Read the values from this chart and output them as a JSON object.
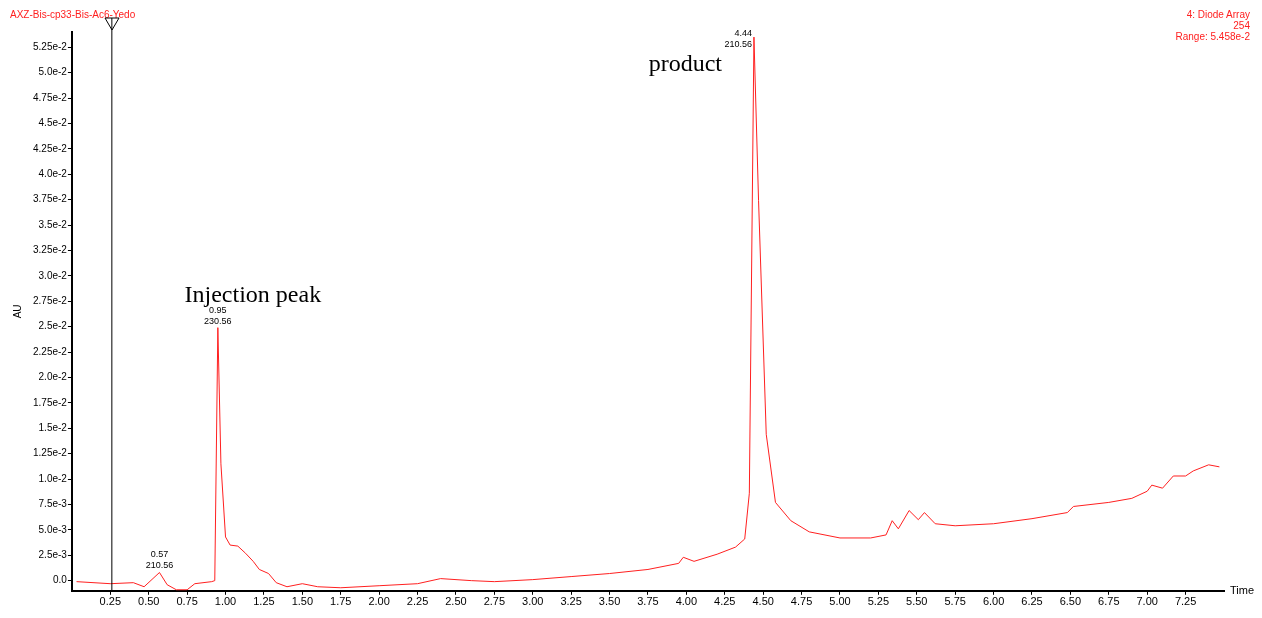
{
  "chart_data": {
    "type": "line",
    "xlabel": "Time",
    "ylabel": "AU",
    "x": [
      0.03,
      0.25,
      0.4,
      0.47,
      0.57,
      0.62,
      0.68,
      0.75,
      0.8,
      0.91,
      0.93,
      0.95,
      0.97,
      1.0,
      1.03,
      1.08,
      1.13,
      1.18,
      1.22,
      1.28,
      1.33,
      1.4,
      1.5,
      1.6,
      1.75,
      2.0,
      2.25,
      2.4,
      2.6,
      2.75,
      3.0,
      3.25,
      3.5,
      3.75,
      3.95,
      3.98,
      4.05,
      4.2,
      4.32,
      4.38,
      4.41,
      4.44,
      4.47,
      4.52,
      4.58,
      4.68,
      4.8,
      5.0,
      5.2,
      5.3,
      5.34,
      5.38,
      5.45,
      5.51,
      5.55,
      5.62,
      5.75,
      6.0,
      6.25,
      6.48,
      6.52,
      6.75,
      6.9,
      7.0,
      7.03,
      7.1,
      7.17,
      7.25,
      7.3,
      7.4,
      7.47
    ],
    "series": [
      {
        "color": "#ff2020",
        "values": [
          -0.0001,
          -0.0003,
          -0.0002,
          -0.0006,
          0.0008,
          -0.0004,
          -0.0009,
          -0.0009,
          -0.0003,
          -0.0001,
          0.0,
          0.0249,
          0.0115,
          0.0043,
          0.0035,
          0.0034,
          0.0027,
          0.0019,
          0.0011,
          0.0007,
          -0.0002,
          -0.0006,
          -0.0003,
          -0.0006,
          -0.0007,
          -0.0005,
          -0.0003,
          0.0002,
          0.0,
          -0.0001,
          0.0001,
          0.0004,
          0.0007,
          0.0011,
          0.0017,
          0.0023,
          0.0019,
          0.0026,
          0.0033,
          0.0041,
          0.0086,
          0.0535,
          0.0374,
          0.0144,
          0.0077,
          0.0059,
          0.0048,
          0.0042,
          0.0042,
          0.0045,
          0.0059,
          0.0051,
          0.0069,
          0.006,
          0.0067,
          0.0056,
          0.0054,
          0.0056,
          0.0061,
          0.0067,
          0.0073,
          0.0077,
          0.0081,
          0.0088,
          0.0094,
          0.0091,
          0.0103,
          0.0103,
          0.0108,
          0.0114,
          0.0112
        ]
      }
    ],
    "xlim": [
      0,
      7.5
    ],
    "xticks": [
      {
        "value": 0.25,
        "label": "0.25"
      },
      {
        "value": 0.5,
        "label": "0.50"
      },
      {
        "value": 0.75,
        "label": "0.75"
      },
      {
        "value": 1,
        "label": "1.00"
      },
      {
        "value": 1.25,
        "label": "1.25"
      },
      {
        "value": 1.5,
        "label": "1.50"
      },
      {
        "value": 1.75,
        "label": "1.75"
      },
      {
        "value": 2,
        "label": "2.00"
      },
      {
        "value": 2.25,
        "label": "2.25"
      },
      {
        "value": 2.5,
        "label": "2.50"
      },
      {
        "value": 2.75,
        "label": "2.75"
      },
      {
        "value": 3,
        "label": "3.00"
      },
      {
        "value": 3.25,
        "label": "3.25"
      },
      {
        "value": 3.5,
        "label": "3.50"
      },
      {
        "value": 3.75,
        "label": "3.75"
      },
      {
        "value": 4,
        "label": "4.00"
      },
      {
        "value": 4.25,
        "label": "4.25"
      },
      {
        "value": 4.5,
        "label": "4.50"
      },
      {
        "value": 4.75,
        "label": "4.75"
      },
      {
        "value": 5,
        "label": "5.00"
      },
      {
        "value": 5.25,
        "label": "5.25"
      },
      {
        "value": 5.5,
        "label": "5.50"
      },
      {
        "value": 5.75,
        "label": "5.75"
      },
      {
        "value": 6,
        "label": "6.00"
      },
      {
        "value": 6.25,
        "label": "6.25"
      },
      {
        "value": 6.5,
        "label": "6.50"
      },
      {
        "value": 6.75,
        "label": "6.75"
      },
      {
        "value": 7,
        "label": "7.00"
      },
      {
        "value": 7.25,
        "label": "7.25"
      }
    ],
    "ylim": [
      -0.001,
      0.054
    ],
    "yticks": [
      {
        "value": 0,
        "label": "0.0"
      },
      {
        "value": 0.0025,
        "label": "2.5e-3"
      },
      {
        "value": 0.005,
        "label": "5.0e-3"
      },
      {
        "value": 0.0075,
        "label": "7.5e-3"
      },
      {
        "value": 0.01,
        "label": "1.0e-2"
      },
      {
        "value": 0.0125,
        "label": "1.25e-2"
      },
      {
        "value": 0.015,
        "label": "1.5e-2"
      },
      {
        "value": 0.0175,
        "label": "1.75e-2"
      },
      {
        "value": 0.02,
        "label": "2.0e-2"
      },
      {
        "value": 0.0225,
        "label": "2.25e-2"
      },
      {
        "value": 0.025,
        "label": "2.5e-2"
      },
      {
        "value": 0.0275,
        "label": "2.75e-2"
      },
      {
        "value": 0.03,
        "label": "3.0e-2"
      },
      {
        "value": 0.0325,
        "label": "3.25e-2"
      },
      {
        "value": 0.035,
        "label": "3.5e-2"
      },
      {
        "value": 0.0375,
        "label": "3.75e-2"
      },
      {
        "value": 0.04,
        "label": "4.0e-2"
      },
      {
        "value": 0.0425,
        "label": "4.25e-2"
      },
      {
        "value": 0.045,
        "label": "4.5e-2"
      },
      {
        "value": 0.0475,
        "label": "4.75e-2"
      },
      {
        "value": 0.05,
        "label": "5.0e-2"
      },
      {
        "value": 0.0525,
        "label": "5.25e-2"
      }
    ],
    "ref_lines": [
      {
        "axis": "x",
        "value": 0.26,
        "color": "#000000"
      }
    ],
    "marker": "none",
    "line_style": "solid",
    "legend": false,
    "annotations": [
      "AXZ-Bis-cp33-Bis-Ac6-Yedo",
      "4: Diode Array",
      "254",
      "Range: 5.458e-2",
      {
        "text": "0.57\n210.56",
        "x": 0.57,
        "y": 0.0008
      },
      {
        "text": "0.95\n230.56",
        "x": 0.95,
        "y": 0.0249
      },
      {
        "text": "4.44\n210.56",
        "x": 4.44,
        "y": 0.0535
      },
      {
        "text": "Injection peak",
        "x": 0.95,
        "y": 0.0249
      },
      {
        "text": "product",
        "x": 4.44,
        "y": 0.0535
      }
    ]
  }
}
